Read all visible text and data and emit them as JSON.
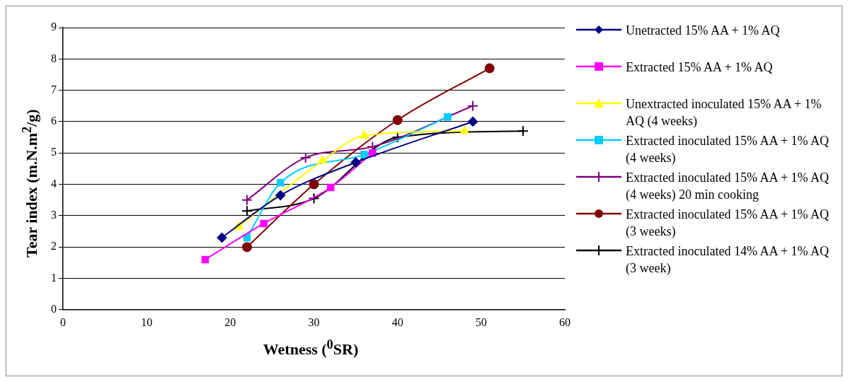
{
  "chart_data": {
    "type": "line",
    "xlabel": "Wetness ($^{0}$SR)",
    "ylabel": "Tear index (m.N.m$^{2}$/g)",
    "xlim": [
      0,
      60
    ],
    "xticks": [
      0,
      10,
      20,
      30,
      40,
      50,
      60
    ],
    "ylim": [
      0,
      9
    ],
    "yticks": [
      0,
      1,
      2,
      3,
      4,
      5,
      6,
      7,
      8,
      9
    ],
    "grid": "y",
    "legend": "right",
    "series": [
      {
        "name": "Unetracted 15% AA + 1% AQ",
        "color": "#000080",
        "marker": "diamond",
        "x": [
          19,
          26,
          35,
          49
        ],
        "values": [
          2.3,
          3.65,
          4.7,
          6.0
        ]
      },
      {
        "name": "Extracted 15% AA + 1% AQ",
        "color": "#ff00ff",
        "marker": "square",
        "x": [
          17,
          24,
          32,
          37
        ],
        "values": [
          1.6,
          2.75,
          3.9,
          5.0
        ]
      },
      {
        "name": "Unextracted inoculated 15% AA + 1% AQ (4 weeks)",
        "color": "#ffff00",
        "marker": "triangle",
        "x": [
          21,
          31,
          36,
          48
        ],
        "values": [
          2.65,
          4.75,
          5.55,
          5.7
        ]
      },
      {
        "name": "Extracted inoculated 15% AA + 1% AQ (4 weeks)",
        "color": "#00ccff",
        "marker": "square",
        "x": [
          22,
          26,
          36,
          46
        ],
        "values": [
          2.3,
          4.05,
          4.95,
          6.15
        ]
      },
      {
        "name": "Extracted inoculated 15% AA + 1% AQ (4 weeks) 20 min cooking",
        "color": "#800080",
        "marker": "cross",
        "x": [
          22,
          29,
          37,
          49
        ],
        "values": [
          3.5,
          4.85,
          5.2,
          6.5
        ]
      },
      {
        "name": "Extracted inoculated 15% AA + 1% AQ (3 weeks)",
        "color": "#800000",
        "marker": "circle",
        "x": [
          22,
          30,
          40,
          51
        ],
        "values": [
          2.0,
          4.0,
          6.05,
          7.7
        ]
      },
      {
        "name": "Extracted inoculated 14% AA + 1% AQ (3 week)",
        "color": "#000000",
        "marker": "cross",
        "x": [
          22,
          30,
          40,
          55
        ],
        "values": [
          3.15,
          3.55,
          5.5,
          5.7
        ]
      }
    ]
  }
}
